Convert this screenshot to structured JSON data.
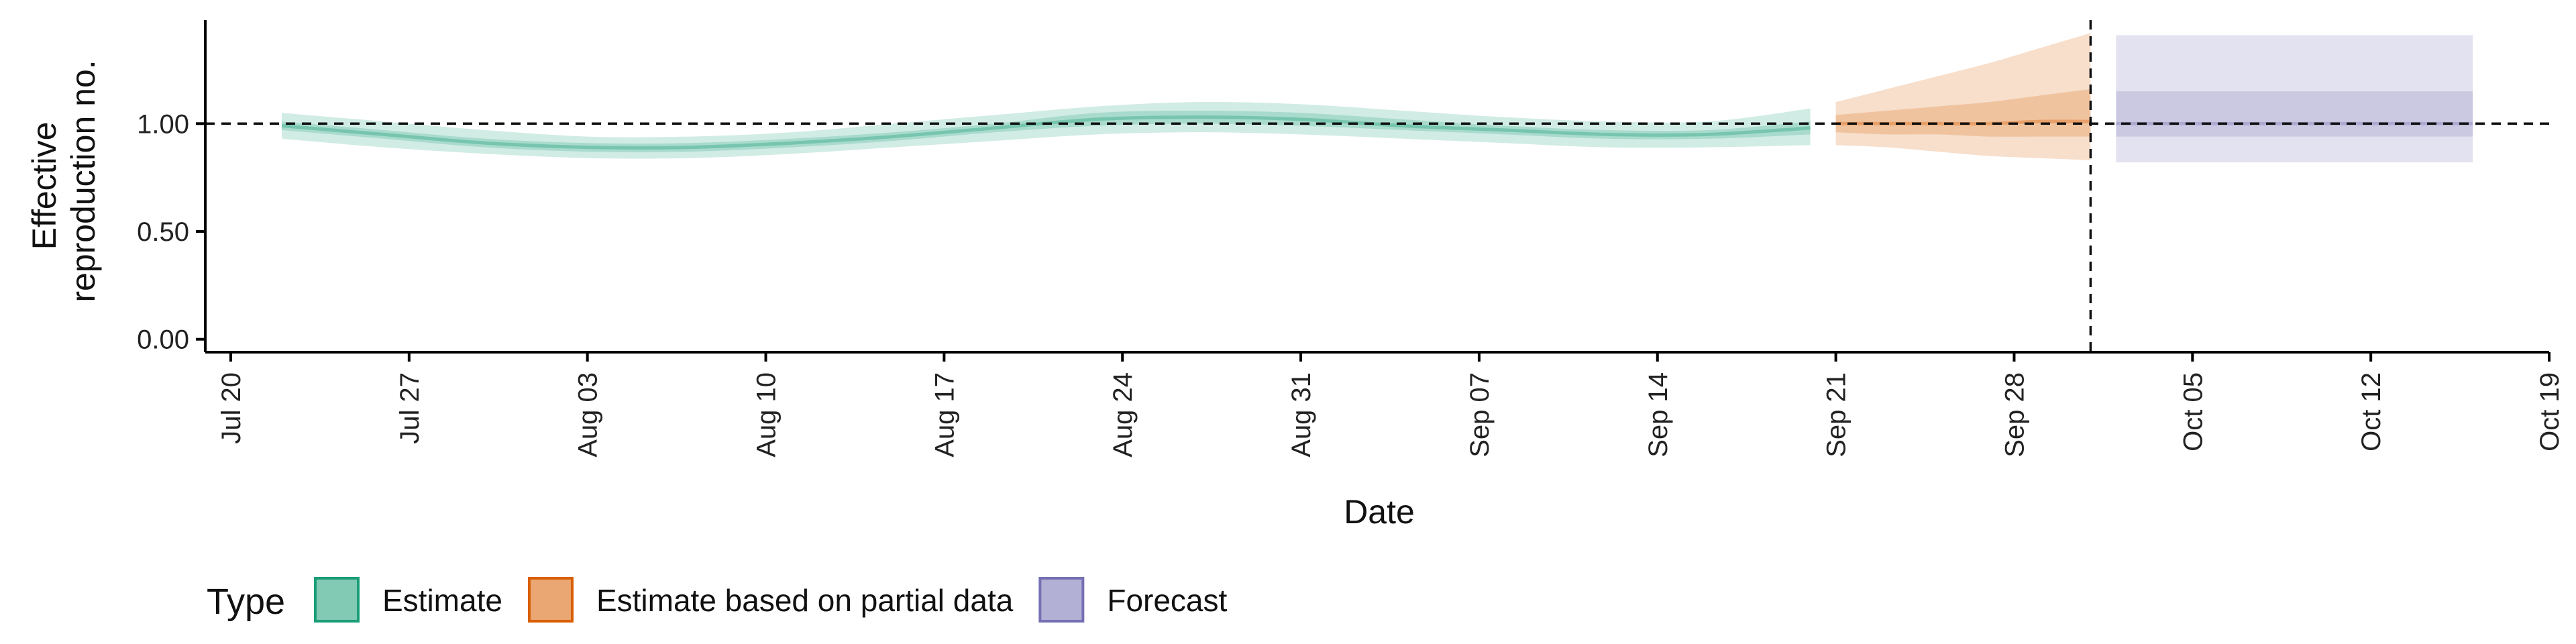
{
  "chart_data": {
    "type": "area",
    "xlabel": "Date",
    "ylabel": "Effective reproduction no.",
    "ylim": [
      -0.06,
      1.48
    ],
    "yticks": [
      0.0,
      0.5,
      1.0
    ],
    "ytick_labels": [
      "0.00",
      "0.50",
      "1.00"
    ],
    "xlim": [
      "2020-07-19",
      "2020-10-19"
    ],
    "xticks": [
      "2020-07-20",
      "2020-07-27",
      "2020-08-03",
      "2020-08-10",
      "2020-08-17",
      "2020-08-24",
      "2020-08-31",
      "2020-09-07",
      "2020-09-14",
      "2020-09-21",
      "2020-09-28",
      "2020-10-05",
      "2020-10-12",
      "2020-10-19"
    ],
    "xtick_labels": [
      "Jul 20",
      "Jul 27",
      "Aug 03",
      "Aug 10",
      "Aug 17",
      "Aug 24",
      "Aug 31",
      "Sep 07",
      "Sep 14",
      "Sep 21",
      "Sep 28",
      "Oct 05",
      "Oct 12",
      "Oct 19"
    ],
    "reference_lines": {
      "horizontal_y": 1.0,
      "vertical_x": "2020-10-01"
    },
    "legend": {
      "title": "Type",
      "position": "bottom-left"
    },
    "series": [
      {
        "name": "Estimate",
        "color": "#1b9e77",
        "x": [
          "2020-07-22",
          "2020-07-26",
          "2020-07-30",
          "2020-08-03",
          "2020-08-07",
          "2020-08-11",
          "2020-08-15",
          "2020-08-19",
          "2020-08-23",
          "2020-08-27",
          "2020-08-31",
          "2020-09-04",
          "2020-09-08",
          "2020-09-12",
          "2020-09-16",
          "2020-09-20"
        ],
        "median": [
          0.99,
          0.95,
          0.91,
          0.89,
          0.89,
          0.91,
          0.94,
          0.98,
          1.02,
          1.03,
          1.02,
          0.99,
          0.97,
          0.95,
          0.95,
          0.98
        ],
        "lower_90": [
          0.93,
          0.89,
          0.86,
          0.84,
          0.84,
          0.86,
          0.89,
          0.92,
          0.95,
          0.96,
          0.95,
          0.93,
          0.91,
          0.89,
          0.89,
          0.9
        ],
        "upper_90": [
          1.05,
          1.01,
          0.97,
          0.94,
          0.94,
          0.96,
          1.0,
          1.04,
          1.08,
          1.1,
          1.09,
          1.06,
          1.03,
          1.01,
          1.01,
          1.07
        ],
        "lower_50": [
          0.97,
          0.93,
          0.89,
          0.87,
          0.87,
          0.89,
          0.92,
          0.96,
          0.99,
          1.0,
          0.99,
          0.97,
          0.95,
          0.93,
          0.93,
          0.95
        ],
        "upper_50": [
          1.01,
          0.97,
          0.93,
          0.91,
          0.91,
          0.93,
          0.96,
          1.0,
          1.05,
          1.06,
          1.05,
          1.02,
          0.99,
          0.97,
          0.97,
          1.01
        ]
      },
      {
        "name": "Estimate based on partial data",
        "color": "#d95f02",
        "x": [
          "2020-09-21",
          "2020-09-23",
          "2020-09-25",
          "2020-09-27",
          "2020-09-29",
          "2020-10-01"
        ],
        "median": [
          1.0,
          1.0,
          1.0,
          1.0,
          1.01,
          1.01
        ],
        "lower_90": [
          0.9,
          0.89,
          0.87,
          0.85,
          0.84,
          0.83
        ],
        "upper_90": [
          1.1,
          1.16,
          1.22,
          1.28,
          1.35,
          1.42
        ],
        "lower_50": [
          0.96,
          0.95,
          0.95,
          0.94,
          0.94,
          0.94
        ],
        "upper_50": [
          1.04,
          1.06,
          1.08,
          1.1,
          1.13,
          1.16
        ]
      },
      {
        "name": "Forecast",
        "color": "#7570b3",
        "x": [
          "2020-10-02",
          "2020-10-16"
        ],
        "median": [
          1.0,
          1.0
        ],
        "lower_90": [
          0.82,
          0.82
        ],
        "upper_90": [
          1.41,
          1.41
        ],
        "lower_50": [
          0.94,
          0.94
        ],
        "upper_50": [
          1.15,
          1.15
        ]
      }
    ]
  }
}
